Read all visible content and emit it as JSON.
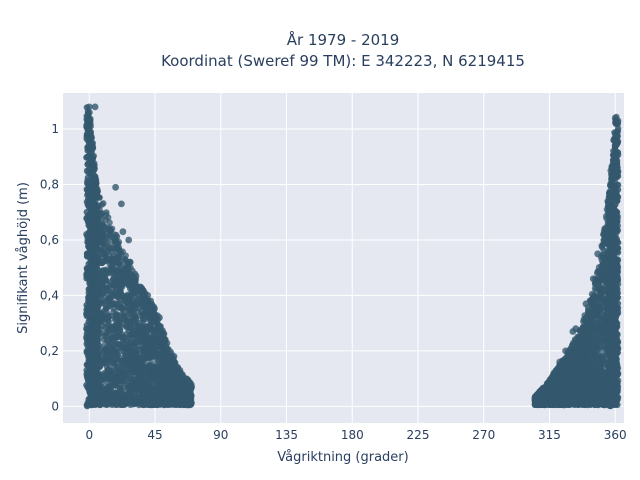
{
  "chart_data": {
    "type": "scatter",
    "title": "År 1979 - 2019",
    "subtitle": "Koordinat (Sweref 99 TM): E 342223, N 6219415",
    "xlabel": "Vågriktning (grader)",
    "ylabel": "Signifikant våghöjd (m)",
    "xlim": [
      -18,
      366
    ],
    "ylim": [
      -0.06,
      1.13
    ],
    "x_ticks": [
      0,
      45,
      90,
      135,
      180,
      225,
      270,
      315,
      360
    ],
    "x_tick_labels": [
      "0",
      "45",
      "90",
      "135",
      "180",
      "225",
      "270",
      "315",
      "360"
    ],
    "y_ticks": [
      0,
      0.2,
      0.4,
      0.6,
      0.8,
      1
    ],
    "y_tick_labels": [
      "0",
      "0,2",
      "0,4",
      "0,6",
      "0,8",
      "1"
    ],
    "grid": true,
    "marker_color": "#34586e",
    "plot_background": "#e5e8f0",
    "clusters": [
      {
        "description_x_range": [
          0,
          70
        ],
        "envelope": [
          [
            0,
            1.08
          ],
          [
            5,
            0.8
          ],
          [
            15,
            0.65
          ],
          [
            25,
            0.55
          ],
          [
            35,
            0.43
          ],
          [
            45,
            0.35
          ],
          [
            55,
            0.2
          ],
          [
            62,
            0.12
          ],
          [
            70,
            0.08
          ]
        ]
      },
      {
        "description_x_range": [
          305,
          362
        ],
        "envelope": [
          [
            305,
            0.03
          ],
          [
            315,
            0.09
          ],
          [
            325,
            0.17
          ],
          [
            335,
            0.26
          ],
          [
            345,
            0.42
          ],
          [
            352,
            0.62
          ],
          [
            357,
            0.82
          ],
          [
            360,
            1.04
          ]
        ]
      }
    ],
    "highlight_points": [
      {
        "x": 0,
        "y": 1.08
      },
      {
        "x": 4,
        "y": 1.08
      },
      {
        "x": 18,
        "y": 0.79
      },
      {
        "x": 22,
        "y": 0.73
      },
      {
        "x": 23,
        "y": 0.63
      },
      {
        "x": 27,
        "y": 0.6
      },
      {
        "x": 28,
        "y": 0.52
      },
      {
        "x": 32,
        "y": 0.47
      },
      {
        "x": 40,
        "y": 0.4
      },
      {
        "x": 42,
        "y": 0.38
      },
      {
        "x": 48,
        "y": 0.32
      },
      {
        "x": 52,
        "y": 0.24
      },
      {
        "x": 58,
        "y": 0.18
      },
      {
        "x": 62,
        "y": 0.13
      },
      {
        "x": 68,
        "y": 0.09
      },
      {
        "x": 70,
        "y": 0.07
      },
      {
        "x": 305,
        "y": 0.03
      },
      {
        "x": 310,
        "y": 0.06
      },
      {
        "x": 318,
        "y": 0.12
      },
      {
        "x": 322,
        "y": 0.16
      },
      {
        "x": 326,
        "y": 0.2
      },
      {
        "x": 331,
        "y": 0.27
      },
      {
        "x": 333,
        "y": 0.28
      },
      {
        "x": 340,
        "y": 0.37
      },
      {
        "x": 345,
        "y": 0.46
      },
      {
        "x": 348,
        "y": 0.55
      },
      {
        "x": 352,
        "y": 0.62
      },
      {
        "x": 355,
        "y": 0.74
      },
      {
        "x": 357,
        "y": 0.85
      },
      {
        "x": 359,
        "y": 0.96
      },
      {
        "x": 360,
        "y": 1.04
      },
      {
        "x": 361,
        "y": 1.02
      }
    ]
  }
}
